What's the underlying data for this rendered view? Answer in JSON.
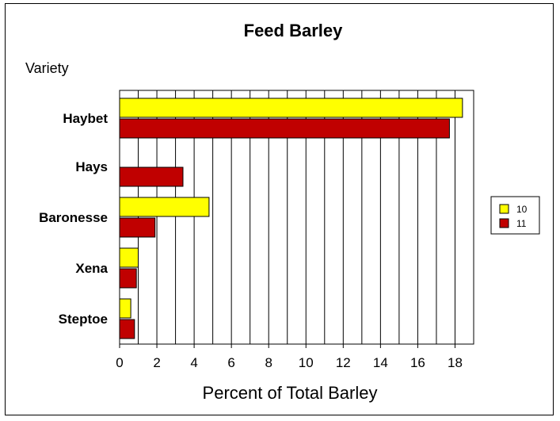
{
  "chart_data": {
    "type": "bar",
    "orientation": "horizontal",
    "title": "Feed Barley",
    "ylabel": "Variety",
    "xlabel": "Percent of Total Barley",
    "categories": [
      "Haybet",
      "Hays",
      "Baronesse",
      "Xena",
      "Steptoe"
    ],
    "series": [
      {
        "name": "10",
        "color": "#ffff00",
        "values": [
          18.4,
          0,
          4.8,
          1.0,
          0.6
        ]
      },
      {
        "name": "11",
        "color": "#c00000",
        "values": [
          17.7,
          3.4,
          1.9,
          0.9,
          0.8
        ]
      }
    ],
    "xlim": [
      0,
      19
    ],
    "xticks": [
      0,
      2,
      4,
      6,
      8,
      10,
      12,
      14,
      16,
      18
    ],
    "grid": "vertical",
    "legend": "right"
  }
}
